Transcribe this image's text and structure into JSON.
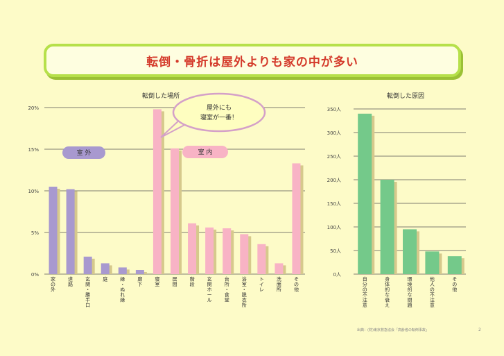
{
  "title": "転倒・骨折は屋外よりも家の中が多い",
  "footer": "出典：(財)東京救急協会「高齢者の転倒事故」",
  "page_number": "2",
  "colors": {
    "outdoor": "#a899cf",
    "indoor": "#f8b3c5",
    "cause": "#74c98a",
    "shadow": "#d6c98c",
    "title": "#d43a2b",
    "title_border": "#b6e04a"
  },
  "chart_data": [
    {
      "type": "bar",
      "title": "転倒した場所",
      "ylim": [
        0,
        20
      ],
      "y_ticks": [
        "0%",
        "5%",
        "10%",
        "15%",
        "20%"
      ],
      "grid": true,
      "groups": [
        {
          "label": "室 外",
          "color_key": "outdoor"
        },
        {
          "label": "室 内",
          "color_key": "indoor"
        }
      ],
      "callout": "屋外にも\n寝室が一番！",
      "categories": [
        "家の外",
        "道路",
        "玄関・勝手口",
        "庭",
        "縁・ぬれ縁",
        "廊下",
        "寝室",
        "居間",
        "階段",
        "玄関ホール",
        "台所・食堂",
        "浴室・脱衣所",
        "トイレ",
        "洗面所",
        "その他"
      ],
      "values": [
        10.5,
        10.2,
        2.1,
        1.3,
        0.8,
        0.5,
        19.8,
        15.1,
        6.1,
        5.6,
        5.5,
        4.8,
        3.6,
        1.3,
        13.3
      ],
      "group_of_bar": [
        0,
        0,
        0,
        0,
        0,
        0,
        1,
        1,
        1,
        1,
        1,
        1,
        1,
        1,
        1
      ]
    },
    {
      "type": "bar",
      "title": "転倒した原因",
      "ylim": [
        0,
        350
      ],
      "y_ticks": [
        "0人",
        "50人",
        "100人",
        "150人",
        "200人",
        "250人",
        "300人",
        "350人"
      ],
      "grid": true,
      "categories": [
        "自分の不注意",
        "身体的な衰え",
        "環境的な問題",
        "他人の不注意",
        "その他"
      ],
      "values": [
        340,
        200,
        95,
        48,
        38
      ]
    }
  ]
}
